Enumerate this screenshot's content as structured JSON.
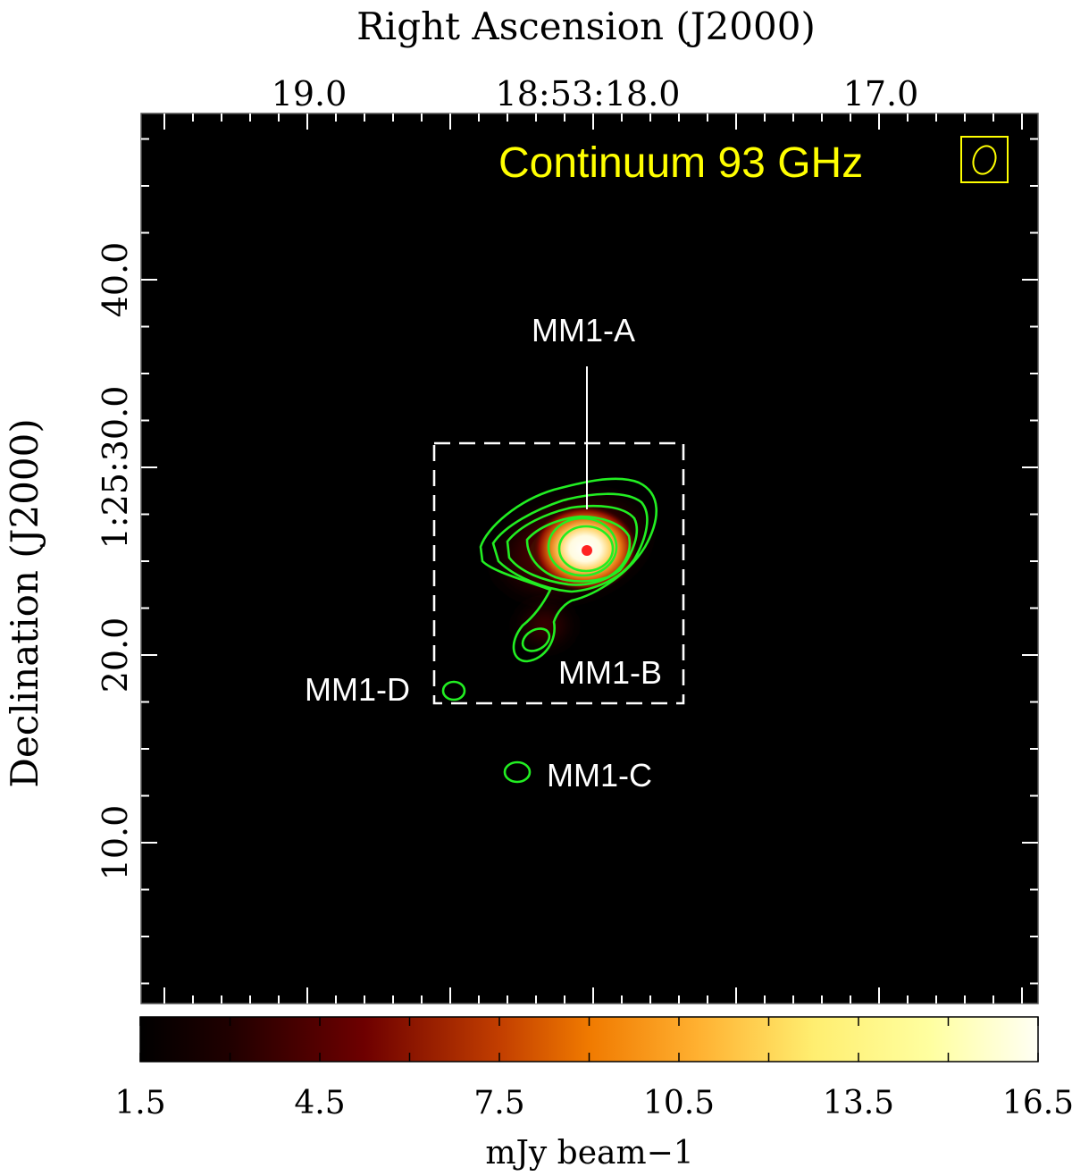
{
  "chart_data": {
    "type": "heatmap",
    "title": "Continuum 93 GHz",
    "top_axis_label": "Right Ascension (J2000)",
    "left_axis_label": "Declination (J2000)",
    "ra_tick_labels": [
      "19.0",
      "18:53:18.0",
      "17.0"
    ],
    "dec_tick_labels": [
      "40.0",
      "1:25:30.0",
      "20.0",
      "10.0"
    ],
    "colorbar": {
      "label": "mJy beam−1",
      "range": [
        1.5,
        16.5
      ],
      "tick_labels": [
        "1.5",
        "4.5",
        "7.5",
        "10.5",
        "13.5",
        "16.5"
      ],
      "colormap": "afmhot"
    },
    "sources": [
      {
        "name": "MM1-A"
      },
      {
        "name": "MM1-B"
      },
      {
        "name": "MM1-C"
      },
      {
        "name": "MM1-D"
      }
    ],
    "colors": {
      "title": "#ffff00",
      "contour": "#22ee22",
      "peak_marker": "#ff2222",
      "labels": "#ffffff",
      "background": "#000000"
    }
  }
}
